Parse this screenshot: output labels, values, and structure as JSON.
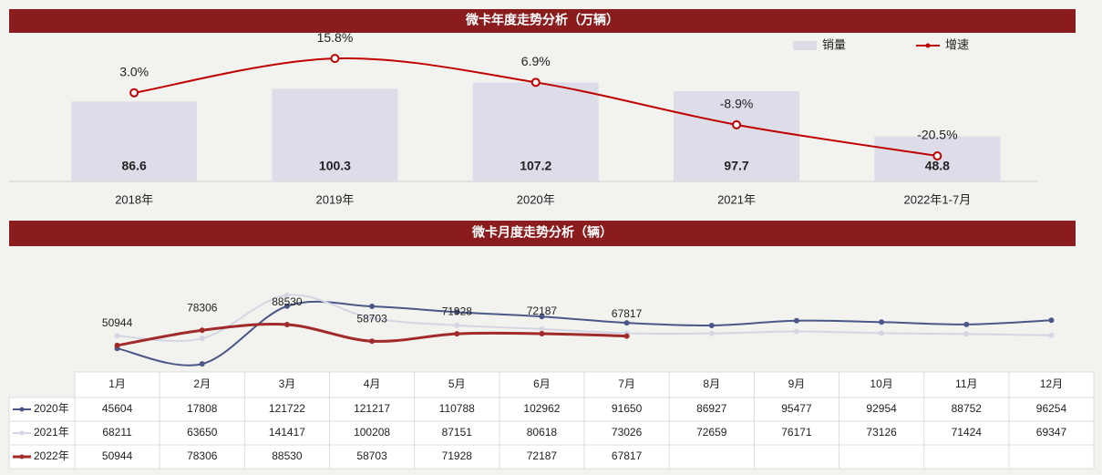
{
  "chart_data": [
    {
      "type": "bar",
      "title": "微卡年度走势分析（万辆）",
      "categories": [
        "2018年",
        "2019年",
        "2020年",
        "2021年",
        "2022年1-7月"
      ],
      "series": [
        {
          "name": "销量",
          "color": "#dcdde8",
          "values": [
            86.6,
            100.3,
            107.2,
            97.7,
            48.8
          ]
        },
        {
          "name": "增速",
          "color": "#c00000",
          "axis": "y2",
          "values": [
            3.0,
            15.8,
            6.9,
            -8.9,
            -20.5
          ],
          "value_labels": [
            "3.0%",
            "15.8%",
            "6.9%",
            "-8.9%",
            "-20.5%"
          ]
        }
      ],
      "ylim": [
        0,
        160
      ],
      "y2lim": [
        -30,
        25
      ],
      "legend": "top-right"
    },
    {
      "type": "line",
      "title": "微卡月度走势分析（辆）",
      "categories": [
        "1月",
        "2月",
        "3月",
        "4月",
        "5月",
        "6月",
        "7月",
        "8月",
        "9月",
        "10月",
        "11月",
        "12月"
      ],
      "series": [
        {
          "name": "2020年",
          "color": "#4b5788",
          "values": [
            45604,
            17808,
            121722,
            121217,
            110788,
            102962,
            91650,
            86927,
            95477,
            92954,
            88752,
            96254
          ]
        },
        {
          "name": "2021年",
          "color": "#d4d6e4",
          "values": [
            68211,
            63650,
            141417,
            100208,
            87151,
            80618,
            73026,
            72659,
            76171,
            73126,
            71424,
            69347
          ]
        },
        {
          "name": "2022年",
          "color": "#a12a2a",
          "values": [
            50944,
            78306,
            88530,
            58703,
            71928,
            72187,
            67817,
            null,
            null,
            null,
            null,
            null
          ]
        }
      ],
      "ylim": [
        0,
        200000
      ],
      "data_labels_series": 2
    }
  ]
}
